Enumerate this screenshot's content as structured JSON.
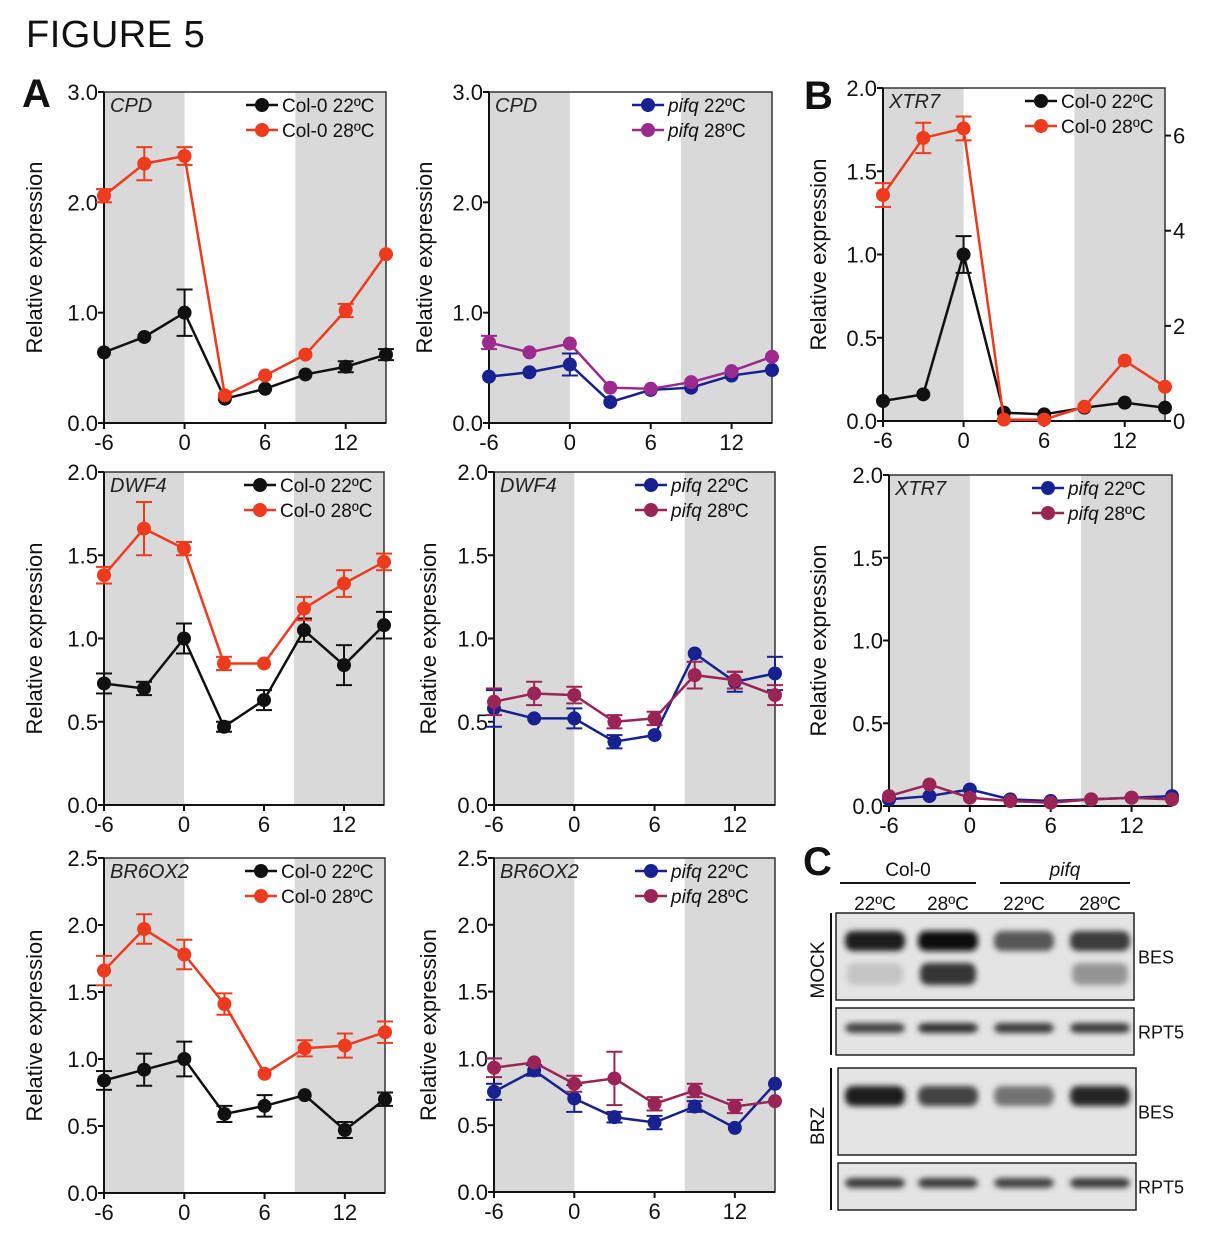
{
  "figure_title": "FIGURE 5",
  "panel_letters": {
    "A": "A",
    "B": "B",
    "C": "C"
  },
  "colors": {
    "col22": "#111111",
    "col28": "#ee3a1d",
    "pifq22": "#17218f",
    "pifq28": "#9c2a8e",
    "pifq28_alt": "#9b2457",
    "shade": "#d9d9d9"
  },
  "chart_data": [
    {
      "id": "A-CPD-col",
      "type": "line",
      "gene": "CPD",
      "xlabel": "",
      "ylabel": "Relative expression",
      "xlim": [
        -6,
        15
      ],
      "ylim": [
        0,
        3.0
      ],
      "yticks": [
        "0.0",
        "1.0",
        "2.0",
        "3.0"
      ],
      "ytick_values": [
        0,
        1,
        2,
        3
      ],
      "xticks": [
        "-6",
        "0",
        "6",
        "12"
      ],
      "xtick_values": [
        -6,
        0,
        6,
        12
      ],
      "shaded": [
        [
          -6,
          0
        ],
        [
          8.25,
          15
        ]
      ],
      "x": [
        -6,
        -3,
        0,
        3,
        6,
        9,
        12,
        15
      ],
      "legend": "top-right",
      "series": [
        {
          "name": "Col-0 22ºC",
          "italic_prefix": "",
          "label": "Col-0 22ºC",
          "color": "#111111",
          "values": [
            0.64,
            0.78,
            1.0,
            0.22,
            0.31,
            0.44,
            0.51,
            0.62
          ],
          "err": [
            0,
            0,
            0.21,
            0,
            0,
            0,
            0.05,
            0.05
          ]
        },
        {
          "name": "Col-0 28ºC",
          "italic_prefix": "",
          "label": "Col-0 28ºC",
          "color": "#ee3a1d",
          "values": [
            2.06,
            2.35,
            2.42,
            0.25,
            0.43,
            0.62,
            1.02,
            1.53
          ],
          "err": [
            0.06,
            0.15,
            0.08,
            0,
            0,
            0,
            0.06,
            0
          ]
        }
      ]
    },
    {
      "id": "A-CPD-pifq",
      "type": "line",
      "gene": "CPD",
      "xlabel": "",
      "ylabel": "Relative expression",
      "xlim": [
        -6,
        15
      ],
      "ylim": [
        0,
        3.0
      ],
      "yticks": [
        "0.0",
        "1.0",
        "2.0",
        "3.0"
      ],
      "ytick_values": [
        0,
        1,
        2,
        3
      ],
      "xticks": [
        "-6",
        "0",
        "6",
        "12"
      ],
      "xtick_values": [
        -6,
        0,
        6,
        12
      ],
      "shaded": [
        [
          -6,
          0
        ],
        [
          8.25,
          15
        ]
      ],
      "x": [
        -6,
        -3,
        0,
        3,
        6,
        9,
        12,
        15
      ],
      "legend": "top-right",
      "series": [
        {
          "name": "pifq 22ºC",
          "italic_prefix": "pifq",
          "label": " 22ºC",
          "color": "#17218f",
          "values": [
            0.42,
            0.46,
            0.53,
            0.19,
            0.3,
            0.32,
            0.43,
            0.48
          ],
          "err": [
            0,
            0,
            0.1,
            0,
            0,
            0,
            0,
            0
          ]
        },
        {
          "name": "pifq 28ºC",
          "italic_prefix": "pifq",
          "label": " 28ºC",
          "color": "#9c2a8e",
          "values": [
            0.73,
            0.64,
            0.72,
            0.32,
            0.31,
            0.37,
            0.47,
            0.6
          ],
          "err": [
            0.06,
            0,
            0,
            0,
            0,
            0,
            0,
            0
          ]
        }
      ]
    },
    {
      "id": "B-XTR7-col",
      "type": "line",
      "gene": "XTR7",
      "xlabel": "",
      "ylabel": "Relative expression",
      "xlim": [
        -6,
        15
      ],
      "ylim": [
        0,
        2.0
      ],
      "yticks": [
        "0.0",
        "0.5",
        "1.0",
        "1.5",
        "2.0"
      ],
      "ytick_values": [
        0,
        0.5,
        1,
        1.5,
        2
      ],
      "xticks": [
        "-6",
        "0",
        "6",
        "12"
      ],
      "xtick_values": [
        -6,
        0,
        6,
        12
      ],
      "shaded": [
        [
          -6,
          0
        ],
        [
          8.25,
          15
        ]
      ],
      "x": [
        -6,
        -3,
        0,
        3,
        6,
        9,
        12,
        15
      ],
      "legend": "top-right",
      "right_axis": {
        "ylim": [
          0,
          7
        ],
        "yticks": [
          "0",
          "2",
          "4",
          "6"
        ],
        "ytick_values": [
          0,
          2,
          4,
          6
        ],
        "series": "Col-0 28ºC"
      },
      "series": [
        {
          "name": "Col-0 22ºC",
          "italic_prefix": "",
          "label": "Col-0 22ºC",
          "color": "#111111",
          "values": [
            0.12,
            0.16,
            1.0,
            0.05,
            0.04,
            0.08,
            0.11,
            0.08
          ],
          "err": [
            0,
            0,
            0.11,
            0,
            0,
            0,
            0,
            0
          ],
          "axis": "left"
        },
        {
          "name": "Col-0 28ºC",
          "italic_prefix": "",
          "label": "Col-0 28ºC",
          "color": "#ee3a1d",
          "values": [
            4.75,
            5.95,
            6.15,
            0.03,
            0.03,
            0.3,
            1.27,
            0.72
          ],
          "err": [
            0.25,
            0.32,
            0.25,
            0,
            0,
            0,
            0,
            0
          ],
          "axis": "right"
        }
      ]
    },
    {
      "id": "A-DWF4-col",
      "type": "line",
      "gene": "DWF4",
      "xlabel": "",
      "ylabel": "Relative expression",
      "xlim": [
        -6,
        15
      ],
      "ylim": [
        0,
        2.0
      ],
      "yticks": [
        "0.0",
        "0.5",
        "1.0",
        "1.5",
        "2.0"
      ],
      "ytick_values": [
        0,
        0.5,
        1,
        1.5,
        2
      ],
      "xticks": [
        "-6",
        "0",
        "6",
        "12"
      ],
      "xtick_values": [
        -6,
        0,
        6,
        12
      ],
      "shaded": [
        [
          -6,
          0
        ],
        [
          8.25,
          15
        ]
      ],
      "x": [
        -6,
        -3,
        0,
        3,
        6,
        9,
        12,
        15
      ],
      "legend": "top-right",
      "series": [
        {
          "name": "Col-0 22ºC",
          "italic_prefix": "",
          "label": "Col-0 22ºC",
          "color": "#111111",
          "values": [
            0.73,
            0.7,
            1.0,
            0.47,
            0.63,
            1.05,
            0.84,
            1.08
          ],
          "err": [
            0.06,
            0.04,
            0.09,
            0.03,
            0.06,
            0.07,
            0.12,
            0.08
          ]
        },
        {
          "name": "Col-0 28ºC",
          "italic_prefix": "",
          "label": "Col-0 28ºC",
          "color": "#ee3a1d",
          "values": [
            1.38,
            1.66,
            1.54,
            0.85,
            0.85,
            1.18,
            1.33,
            1.46
          ],
          "err": [
            0.05,
            0.16,
            0.04,
            0.04,
            0,
            0.07,
            0.08,
            0.05
          ]
        }
      ]
    },
    {
      "id": "A-DWF4-pifq",
      "type": "line",
      "gene": "DWF4",
      "xlabel": "",
      "ylabel": "Relative expression",
      "xlim": [
        -6,
        15
      ],
      "ylim": [
        0,
        2.0
      ],
      "yticks": [
        "0.0",
        "0.5",
        "1.0",
        "1.5",
        "2.0"
      ],
      "ytick_values": [
        0,
        0.5,
        1,
        1.5,
        2
      ],
      "xticks": [
        "-6",
        "0",
        "6",
        "12"
      ],
      "xtick_values": [
        -6,
        0,
        6,
        12
      ],
      "shaded": [
        [
          -6,
          0
        ],
        [
          8.25,
          15
        ]
      ],
      "x": [
        -6,
        -3,
        0,
        3,
        6,
        9,
        12,
        15
      ],
      "legend": "top-right",
      "series": [
        {
          "name": "pifq 22ºC",
          "italic_prefix": "pifq",
          "label": " 22ºC",
          "color": "#17218f",
          "values": [
            0.58,
            0.52,
            0.52,
            0.38,
            0.42,
            0.91,
            0.74,
            0.79
          ],
          "err": [
            0.11,
            0,
            0.06,
            0.04,
            0,
            0,
            0.06,
            0.1
          ]
        },
        {
          "name": "pifq 28ºC",
          "italic_prefix": "pifq",
          "label": " 28ºC",
          "color": "#9b2457",
          "values": [
            0.62,
            0.67,
            0.66,
            0.5,
            0.52,
            0.78,
            0.75,
            0.66
          ],
          "err": [
            0.08,
            0.07,
            0.05,
            0.04,
            0.04,
            0.08,
            0.05,
            0.06
          ]
        }
      ]
    },
    {
      "id": "B-XTR7-pifq",
      "type": "line",
      "gene": "XTR7",
      "xlabel": "",
      "ylabel": "Relative expression",
      "xlim": [
        -6,
        15
      ],
      "ylim": [
        0,
        2.0
      ],
      "yticks": [
        "0.0",
        "0.5",
        "1.0",
        "1.5",
        "2.0"
      ],
      "ytick_values": [
        0,
        0.5,
        1,
        1.5,
        2
      ],
      "xticks": [
        "-6",
        "0",
        "6",
        "12"
      ],
      "xtick_values": [
        -6,
        0,
        6,
        12
      ],
      "shaded": [
        [
          -6,
          0
        ],
        [
          8.25,
          15
        ]
      ],
      "x": [
        -6,
        -3,
        0,
        3,
        6,
        9,
        12,
        15
      ],
      "legend": "top-right",
      "series": [
        {
          "name": "pifq 22ºC",
          "italic_prefix": "pifq",
          "label": " 22ºC",
          "color": "#17218f",
          "values": [
            0.04,
            0.06,
            0.1,
            0.04,
            0.03,
            0.04,
            0.05,
            0.06
          ],
          "err": [
            0,
            0,
            0,
            0,
            0,
            0,
            0,
            0
          ]
        },
        {
          "name": "pifq 28ºC",
          "italic_prefix": "pifq",
          "label": " 28ºC",
          "color": "#9b2457",
          "values": [
            0.06,
            0.13,
            0.05,
            0.03,
            0.02,
            0.04,
            0.05,
            0.04
          ],
          "err": [
            0,
            0,
            0,
            0,
            0,
            0,
            0,
            0
          ]
        }
      ]
    },
    {
      "id": "A-BR6OX2-col",
      "type": "line",
      "gene": "BR6OX2",
      "xlabel": "",
      "ylabel": "Relative expression",
      "xlim": [
        -6,
        15
      ],
      "ylim": [
        0,
        2.5
      ],
      "yticks": [
        "0.0",
        "0.5",
        "1.0",
        "1.5",
        "2.0",
        "2.5"
      ],
      "ytick_values": [
        0,
        0.5,
        1,
        1.5,
        2,
        2.5
      ],
      "xticks": [
        "-6",
        "0",
        "6",
        "12"
      ],
      "xtick_values": [
        -6,
        0,
        6,
        12
      ],
      "shaded": [
        [
          -6,
          0
        ],
        [
          8.25,
          15
        ]
      ],
      "x": [
        -6,
        -3,
        0,
        3,
        6,
        9,
        12,
        15
      ],
      "legend": "top-right",
      "series": [
        {
          "name": "Col-0 22ºC",
          "italic_prefix": "",
          "label": "Col-0 22ºC",
          "color": "#111111",
          "values": [
            0.84,
            0.92,
            1.0,
            0.59,
            0.65,
            0.73,
            0.47,
            0.7
          ],
          "err": [
            0.07,
            0.12,
            0.13,
            0.06,
            0.08,
            0,
            0.06,
            0.05
          ]
        },
        {
          "name": "Col-0 28ºC",
          "italic_prefix": "",
          "label": "Col-0 28ºC",
          "color": "#ee3a1d",
          "values": [
            1.66,
            1.97,
            1.78,
            1.41,
            0.89,
            1.08,
            1.1,
            1.2
          ],
          "err": [
            0.11,
            0.11,
            0.11,
            0.08,
            0,
            0.06,
            0.09,
            0.08
          ]
        }
      ]
    },
    {
      "id": "A-BR6OX2-pifq",
      "type": "line",
      "gene": "BR6OX2",
      "xlabel": "",
      "ylabel": "Relative expression",
      "xlim": [
        -6,
        15
      ],
      "ylim": [
        0,
        2.5
      ],
      "yticks": [
        "0.0",
        "0.5",
        "1.0",
        "1.5",
        "2.0",
        "2.5"
      ],
      "ytick_values": [
        0,
        0.5,
        1,
        1.5,
        2,
        2.5
      ],
      "xticks": [
        "-6",
        "0",
        "6",
        "12"
      ],
      "xtick_values": [
        -6,
        0,
        6,
        12
      ],
      "shaded": [
        [
          -6,
          0
        ],
        [
          8.25,
          15
        ]
      ],
      "x": [
        -6,
        -3,
        0,
        3,
        6,
        9,
        12,
        15
      ],
      "legend": "top-right",
      "series": [
        {
          "name": "pifq 22ºC",
          "italic_prefix": "pifq",
          "label": " 22ºC",
          "color": "#17218f",
          "values": [
            0.75,
            0.91,
            0.7,
            0.56,
            0.52,
            0.64,
            0.48,
            0.81
          ],
          "err": [
            0.06,
            0.04,
            0.1,
            0.04,
            0.05,
            0.04,
            0,
            0
          ]
        },
        {
          "name": "pifq 28ºC",
          "italic_prefix": "pifq",
          "label": " 28ºC",
          "color": "#9b2457",
          "values": [
            0.93,
            0.97,
            0.81,
            0.85,
            0.66,
            0.76,
            0.64,
            0.68
          ],
          "err": [
            0.07,
            0,
            0.06,
            0.2,
            0.05,
            0.05,
            0.05,
            0
          ]
        }
      ]
    }
  ],
  "western_blot": {
    "panel": "C",
    "genotypes": [
      {
        "label": "Col-0",
        "italic": false
      },
      {
        "label": "pifq",
        "italic": true
      }
    ],
    "temperatures": [
      "22ºC",
      "28ºC",
      "22ºC",
      "28ºC"
    ],
    "treatments": [
      "MOCK",
      "BRZ"
    ],
    "rows": [
      {
        "treatment": "MOCK",
        "protein": "BES",
        "intensity": [
          0.9,
          1.0,
          0.6,
          0.75
        ],
        "lower_band": [
          0.1,
          0.85,
          0.05,
          0.35
        ]
      },
      {
        "treatment": "MOCK",
        "protein": "RPT5",
        "intensity": [
          0.7,
          0.8,
          0.75,
          0.75
        ]
      },
      {
        "treatment": "BRZ",
        "protein": "BES",
        "intensity": [
          0.9,
          0.7,
          0.45,
          0.85
        ]
      },
      {
        "treatment": "BRZ",
        "protein": "RPT5",
        "intensity": [
          0.75,
          0.75,
          0.7,
          0.75
        ]
      }
    ]
  }
}
